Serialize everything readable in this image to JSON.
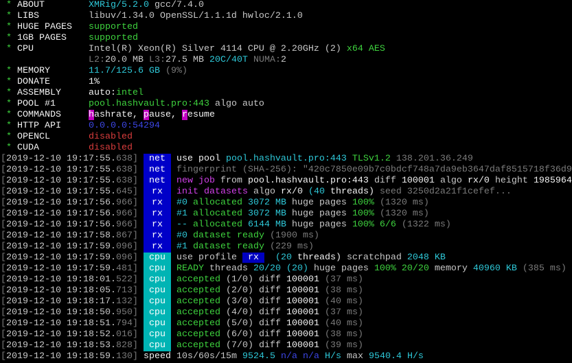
{
  "header": [
    {
      "label": "ABOUT",
      "segs": [
        [
          "XMRig/5.2.0",
          "c"
        ],
        [
          " gcc/7.4.0",
          "w"
        ]
      ]
    },
    {
      "label": "LIBS",
      "segs": [
        [
          "libuv/1.34.0 OpenSSL/1.1.1d hwloc/2.1.0",
          "w"
        ]
      ]
    },
    {
      "label": "HUGE PAGES",
      "segs": [
        [
          "supported",
          "g"
        ]
      ]
    },
    {
      "label": "1GB PAGES",
      "segs": [
        [
          "supported",
          "g"
        ]
      ]
    },
    {
      "label": "CPU",
      "segs": [
        [
          "Intel(R) Xeon(R) Silver 4114 CPU @ 2.20GHz (2) ",
          "w"
        ],
        [
          "x64 AES",
          "g"
        ]
      ]
    },
    {
      "label": "",
      "segs": [
        [
          "L2:",
          "gr"
        ],
        [
          "20.0 MB ",
          "w"
        ],
        [
          "L3:",
          "gr"
        ],
        [
          "27.5 MB ",
          "w"
        ],
        [
          "20C/40T ",
          "c"
        ],
        [
          "NUMA:",
          "gr"
        ],
        [
          "2",
          "w"
        ]
      ]
    },
    {
      "label": "MEMORY",
      "segs": [
        [
          "11.7/125.6 GB ",
          "c"
        ],
        [
          "(9%)",
          "gr"
        ]
      ]
    },
    {
      "label": "DONATE",
      "segs": [
        [
          "1%",
          "W"
        ]
      ]
    },
    {
      "label": "ASSEMBLY",
      "segs": [
        [
          "auto:",
          "W"
        ],
        [
          "intel",
          "g"
        ]
      ]
    },
    {
      "label": "POOL #1",
      "segs": [
        [
          "pool.hashvault.pro:443",
          "g"
        ],
        [
          " algo auto",
          "w"
        ]
      ]
    },
    {
      "label": "COMMANDS",
      "segs": [
        [
          "h",
          "hl"
        ],
        [
          "ashrate, ",
          "W"
        ],
        [
          "p",
          "hl"
        ],
        [
          "ause, ",
          "W"
        ],
        [
          "r",
          "hl"
        ],
        [
          "esume",
          "W"
        ]
      ]
    },
    {
      "label": "HTTP API",
      "segs": [
        [
          "0.0.0.0:54294",
          "b"
        ]
      ]
    },
    {
      "label": "OPENCL",
      "segs": [
        [
          "disabled",
          "r"
        ]
      ]
    },
    {
      "label": "CUDA",
      "segs": [
        [
          "disabled",
          "r"
        ]
      ]
    }
  ],
  "log": [
    {
      "ts": "2019-12-10 19:17:55",
      "ms": "638",
      "tag": "net",
      "segs": [
        [
          "use pool ",
          "W"
        ],
        [
          "pool.hashvault.pro:443 ",
          "c"
        ],
        [
          "TLSv1.2 ",
          "g"
        ],
        [
          "138.201.36.249",
          "gr"
        ]
      ]
    },
    {
      "ts": "2019-12-10 19:17:55",
      "ms": "638",
      "tag": "net",
      "segs": [
        [
          "fingerprint (SHA-256): \"420c7850e09b7c0bdcf748a7da9eb3647daf8515718f36d9",
          "gr"
        ]
      ]
    },
    {
      "ts": "2019-12-10 19:17:55",
      "ms": "638",
      "tag": "net",
      "segs": [
        [
          "new job ",
          "m"
        ],
        [
          "from ",
          "w"
        ],
        [
          "pool.hashvault.pro:443 ",
          "W"
        ],
        [
          "diff ",
          "w"
        ],
        [
          "100001 ",
          "W"
        ],
        [
          "algo ",
          "w"
        ],
        [
          "rx/0 ",
          "W"
        ],
        [
          "height ",
          "w"
        ],
        [
          "1985964",
          "W"
        ]
      ]
    },
    {
      "ts": "2019-12-10 19:17:55",
      "ms": "645",
      "tag": "rx",
      "segs": [
        [
          "init datasets ",
          "m"
        ],
        [
          "algo ",
          "w"
        ],
        [
          "rx/0 ",
          "W"
        ],
        [
          "(40 ",
          "c"
        ],
        [
          "threads) ",
          "W"
        ],
        [
          "seed 3250d2a21f1cefef...",
          "gr"
        ]
      ]
    },
    {
      "ts": "2019-12-10 19:17:56",
      "ms": "966",
      "tag": "rx",
      "segs": [
        [
          "#0 ",
          "c"
        ],
        [
          "allocated ",
          "g"
        ],
        [
          "3072 MB ",
          "c"
        ],
        [
          "huge pages ",
          "w"
        ],
        [
          "100% ",
          "g"
        ],
        [
          "(1320 ms)",
          "gr"
        ]
      ]
    },
    {
      "ts": "2019-12-10 19:17:56",
      "ms": "966",
      "tag": "rx",
      "segs": [
        [
          "#1 ",
          "c"
        ],
        [
          "allocated ",
          "g"
        ],
        [
          "3072 MB ",
          "c"
        ],
        [
          "huge pages ",
          "w"
        ],
        [
          "100% ",
          "g"
        ],
        [
          "(1320 ms)",
          "gr"
        ]
      ]
    },
    {
      "ts": "2019-12-10 19:17:56",
      "ms": "966",
      "tag": "rx",
      "segs": [
        [
          "-- ",
          "c"
        ],
        [
          "allocated ",
          "g"
        ],
        [
          "6144 MB ",
          "c"
        ],
        [
          "huge pages ",
          "w"
        ],
        [
          "100% 6/6 ",
          "g"
        ],
        [
          "(1322 ms)",
          "gr"
        ]
      ]
    },
    {
      "ts": "2019-12-10 19:17:58",
      "ms": "867",
      "tag": "rx",
      "segs": [
        [
          "#0 ",
          "c"
        ],
        [
          "dataset ready ",
          "g"
        ],
        [
          "(1900 ms)",
          "gr"
        ]
      ]
    },
    {
      "ts": "2019-12-10 19:17:59",
      "ms": "096",
      "tag": "rx",
      "segs": [
        [
          "#1 ",
          "c"
        ],
        [
          "dataset ready ",
          "g"
        ],
        [
          "(229 ms)",
          "gr"
        ]
      ]
    },
    {
      "ts": "2019-12-10 19:17:59",
      "ms": "096",
      "tag": "cpu",
      "segs": [
        [
          "use profile ",
          "w"
        ],
        [
          " rx ",
          "rxbox"
        ],
        [
          "  (20 ",
          "c"
        ],
        [
          "threads) ",
          "W"
        ],
        [
          "scratchpad ",
          "w"
        ],
        [
          "2048 KB",
          "c"
        ]
      ]
    },
    {
      "ts": "2019-12-10 19:17:59",
      "ms": "481",
      "tag": "cpu",
      "segs": [
        [
          "READY ",
          "g"
        ],
        [
          "threads ",
          "w"
        ],
        [
          "20/20 (20) ",
          "c"
        ],
        [
          "huge pages ",
          "w"
        ],
        [
          "100% 20/20 ",
          "g"
        ],
        [
          "memory ",
          "w"
        ],
        [
          "40960 KB ",
          "c"
        ],
        [
          "(385 ms)",
          "gr"
        ]
      ]
    },
    {
      "ts": "2019-12-10 19:18:01",
      "ms": "522",
      "tag": "cpu",
      "segs": [
        [
          "accepted ",
          "g"
        ],
        [
          "(1/0) ",
          "w"
        ],
        [
          "diff ",
          "w"
        ],
        [
          "100001 ",
          "W"
        ],
        [
          "(37 ms)",
          "gr"
        ]
      ]
    },
    {
      "ts": "2019-12-10 19:18:05",
      "ms": "713",
      "tag": "cpu",
      "segs": [
        [
          "accepted ",
          "g"
        ],
        [
          "(2/0) ",
          "w"
        ],
        [
          "diff ",
          "w"
        ],
        [
          "100001 ",
          "W"
        ],
        [
          "(38 ms)",
          "gr"
        ]
      ]
    },
    {
      "ts": "2019-12-10 19:18:17",
      "ms": "132",
      "tag": "cpu",
      "segs": [
        [
          "accepted ",
          "g"
        ],
        [
          "(3/0) ",
          "w"
        ],
        [
          "diff ",
          "w"
        ],
        [
          "100001 ",
          "W"
        ],
        [
          "(40 ms)",
          "gr"
        ]
      ]
    },
    {
      "ts": "2019-12-10 19:18:50",
      "ms": "950",
      "tag": "cpu",
      "segs": [
        [
          "accepted ",
          "g"
        ],
        [
          "(4/0) ",
          "w"
        ],
        [
          "diff ",
          "w"
        ],
        [
          "100001 ",
          "W"
        ],
        [
          "(37 ms)",
          "gr"
        ]
      ]
    },
    {
      "ts": "2019-12-10 19:18:51",
      "ms": "794",
      "tag": "cpu",
      "segs": [
        [
          "accepted ",
          "g"
        ],
        [
          "(5/0) ",
          "w"
        ],
        [
          "diff ",
          "w"
        ],
        [
          "100001 ",
          "W"
        ],
        [
          "(40 ms)",
          "gr"
        ]
      ]
    },
    {
      "ts": "2019-12-10 19:18:52",
      "ms": "016",
      "tag": "cpu",
      "segs": [
        [
          "accepted ",
          "g"
        ],
        [
          "(6/0) ",
          "w"
        ],
        [
          "diff ",
          "w"
        ],
        [
          "100001 ",
          "W"
        ],
        [
          "(38 ms)",
          "gr"
        ]
      ]
    },
    {
      "ts": "2019-12-10 19:18:53",
      "ms": "828",
      "tag": "cpu",
      "segs": [
        [
          "accepted ",
          "g"
        ],
        [
          "(7/0) ",
          "w"
        ],
        [
          "diff ",
          "w"
        ],
        [
          "100001 ",
          "W"
        ],
        [
          "(39 ms)",
          "gr"
        ]
      ]
    },
    {
      "ts": "2019-12-10 19:18:59",
      "ms": "130",
      "tag": "",
      "segs": [
        [
          "speed ",
          "W"
        ],
        [
          "10s/60s/15m ",
          "w"
        ],
        [
          "9524.5 ",
          "c"
        ],
        [
          "n/a n/a ",
          "b"
        ],
        [
          "H/s ",
          "c"
        ],
        [
          "max ",
          "w"
        ],
        [
          "9540.4 H/s",
          "c"
        ]
      ]
    }
  ],
  "colors": {
    "net_tag": "#0000c8",
    "rx_tag": "#0000c8",
    "cpu_tag": "#00b4b4",
    "highlight": "#c000c0"
  }
}
